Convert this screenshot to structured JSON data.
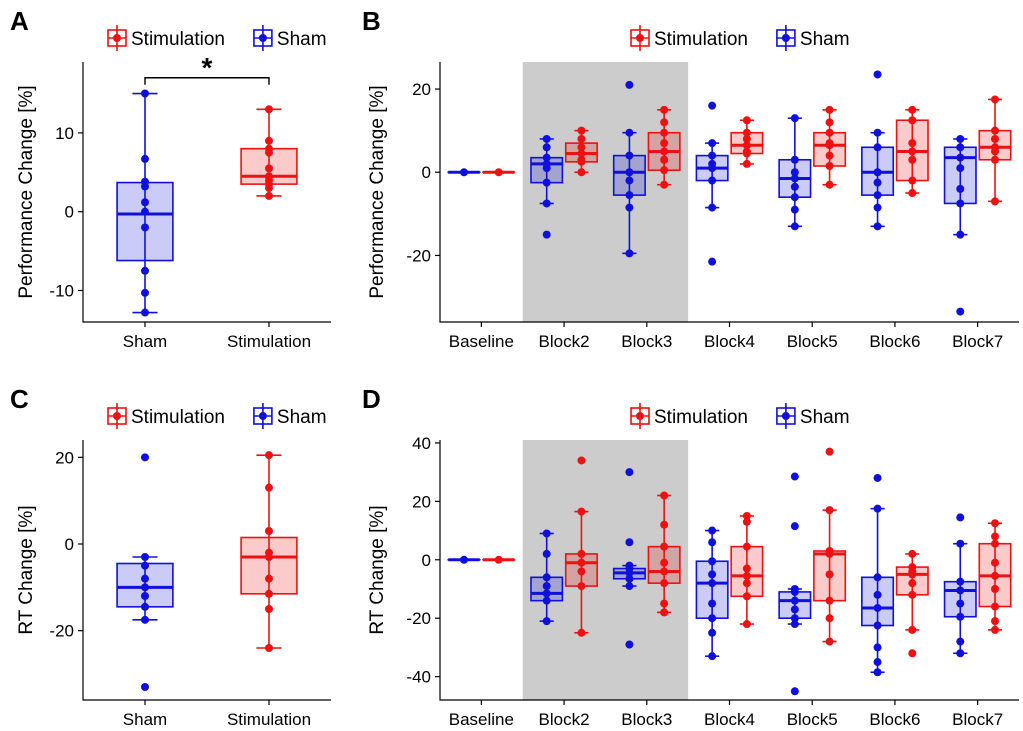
{
  "colors": {
    "stimulation": "#ee1111",
    "sham": "#1010dd",
    "shade": "#cccccc"
  },
  "chart_data": [
    {
      "id": "A",
      "type": "box",
      "panel_label": "A",
      "legend": [
        "Stimulation",
        "Sham"
      ],
      "legend_placement": "top",
      "xlabel": "",
      "ylabel": "Performance Change [%]",
      "ylim": [
        -14,
        19
      ],
      "yticks": [
        -10,
        0,
        10
      ],
      "categories": [
        "Sham",
        "Stimulation"
      ],
      "boxes": [
        {
          "category": "Sham",
          "group": "Sham",
          "min": -12.8,
          "q1": -6.2,
          "median": -0.3,
          "q3": 3.7,
          "max": 15,
          "points": [
            15,
            6.7,
            3.8,
            3.2,
            1.2,
            0,
            -2,
            -7.5,
            -10.3,
            -12.8
          ]
        },
        {
          "category": "Stimulation",
          "group": "Stimulation",
          "min": 2,
          "q1": 3.5,
          "median": 4.5,
          "q3": 8,
          "max": 13,
          "points": [
            13,
            9,
            8,
            7.5,
            5.5,
            4.5,
            4,
            3.5,
            3,
            2
          ]
        }
      ],
      "significance": {
        "label": "*",
        "between": [
          "Sham",
          "Stimulation"
        ],
        "y": 17
      }
    },
    {
      "id": "B",
      "type": "box",
      "panel_label": "B",
      "legend": [
        "Stimulation",
        "Sham"
      ],
      "legend_placement": "top",
      "xlabel": "",
      "ylabel": "Performance Change [%]",
      "ylim": [
        -36,
        26.5
      ],
      "yticks": [
        -20,
        0,
        20
      ],
      "categories": [
        "Baseline",
        "Block2",
        "Block3",
        "Block4",
        "Block5",
        "Block6",
        "Block7"
      ],
      "shaded_categories": [
        "Block2",
        "Block3"
      ],
      "boxes": [
        {
          "category": "Baseline",
          "group": "Sham",
          "min": 0,
          "q1": 0,
          "median": 0,
          "q3": 0,
          "max": 0,
          "points": [
            0
          ]
        },
        {
          "category": "Baseline",
          "group": "Stimulation",
          "min": 0,
          "q1": 0,
          "median": 0,
          "q3": 0,
          "max": 0,
          "points": [
            0
          ]
        },
        {
          "category": "Block2",
          "group": "Sham",
          "min": -7.5,
          "q1": -2.5,
          "median": 2,
          "q3": 3.5,
          "max": 8,
          "points": [
            8,
            6,
            3.5,
            2,
            1,
            -2.5,
            -7.5,
            -15
          ]
        },
        {
          "category": "Block2",
          "group": "Stimulation",
          "min": 0,
          "q1": 2.5,
          "median": 4.5,
          "q3": 7,
          "max": 10,
          "points": [
            10,
            8,
            6,
            4.5,
            3,
            2.5,
            0
          ]
        },
        {
          "category": "Block3",
          "group": "Sham",
          "min": -19.5,
          "q1": -5.5,
          "median": 0,
          "q3": 4,
          "max": 9.5,
          "points": [
            21,
            9.5,
            4,
            0,
            -2,
            -5.5,
            -8.5,
            -19.5
          ]
        },
        {
          "category": "Block3",
          "group": "Stimulation",
          "min": -3,
          "q1": 0.5,
          "median": 5,
          "q3": 9.5,
          "max": 15,
          "points": [
            15,
            12,
            9.5,
            7,
            5,
            3,
            0.5,
            -3
          ]
        },
        {
          "category": "Block4",
          "group": "Sham",
          "min": -8.5,
          "q1": -2,
          "median": 1,
          "q3": 4,
          "max": 7,
          "points": [
            16,
            7,
            4,
            2,
            1,
            -2,
            -8.5,
            -21.5
          ]
        },
        {
          "category": "Block4",
          "group": "Stimulation",
          "min": 2,
          "q1": 4.5,
          "median": 6.5,
          "q3": 9.5,
          "max": 12.5,
          "points": [
            12.5,
            9.5,
            8,
            6.5,
            5,
            4.5,
            2
          ]
        },
        {
          "category": "Block5",
          "group": "Sham",
          "min": -13,
          "q1": -6,
          "median": -1.5,
          "q3": 3,
          "max": 13,
          "points": [
            13,
            3,
            0,
            -1.5,
            -3.5,
            -6,
            -9,
            -13
          ]
        },
        {
          "category": "Block5",
          "group": "Stimulation",
          "min": -3,
          "q1": 1.5,
          "median": 6.5,
          "q3": 9.5,
          "max": 15,
          "points": [
            15,
            12,
            9.5,
            7,
            6.5,
            4,
            1.5,
            -3
          ]
        },
        {
          "category": "Block6",
          "group": "Sham",
          "min": -13,
          "q1": -5.5,
          "median": 0,
          "q3": 6,
          "max": 9.5,
          "points": [
            23.5,
            9.5,
            6,
            0,
            -2.5,
            -5.5,
            -8.5,
            -13
          ]
        },
        {
          "category": "Block6",
          "group": "Stimulation",
          "min": -5,
          "q1": -2,
          "median": 5,
          "q3": 12.5,
          "max": 15,
          "points": [
            15,
            12.5,
            7,
            5,
            3,
            -2,
            -5
          ]
        },
        {
          "category": "Block7",
          "group": "Sham",
          "min": -15,
          "q1": -7.5,
          "median": 3.5,
          "q3": 6,
          "max": 8,
          "points": [
            8,
            6,
            3.5,
            1,
            -4,
            -7.5,
            -15,
            -33.5
          ]
        },
        {
          "category": "Block7",
          "group": "Stimulation",
          "min": -7,
          "q1": 3,
          "median": 6,
          "q3": 10,
          "max": 17.5,
          "points": [
            17.5,
            10,
            8,
            6,
            5,
            3,
            -7
          ]
        }
      ]
    },
    {
      "id": "C",
      "type": "box",
      "panel_label": "C",
      "legend": [
        "Stimulation",
        "Sham"
      ],
      "legend_placement": "top",
      "xlabel": "",
      "ylabel": "RT Change [%]",
      "ylim": [
        -36,
        24
      ],
      "yticks": [
        -20,
        0,
        20
      ],
      "categories": [
        "Sham",
        "Stimulation"
      ],
      "boxes": [
        {
          "category": "Sham",
          "group": "Sham",
          "min": -17.5,
          "q1": -14.5,
          "median": -10,
          "q3": -4.5,
          "max": -3,
          "points": [
            20,
            -3,
            -5,
            -8,
            -10,
            -12,
            -14.5,
            -17.5,
            -33
          ]
        },
        {
          "category": "Stimulation",
          "group": "Stimulation",
          "min": -24,
          "q1": -11.5,
          "median": -3,
          "q3": 1.5,
          "max": 20.5,
          "points": [
            20.5,
            13,
            3,
            -2,
            -3,
            -8,
            -11.5,
            -15,
            -24
          ]
        }
      ]
    },
    {
      "id": "D",
      "type": "box",
      "panel_label": "D",
      "legend": [
        "Stimulation",
        "Sham"
      ],
      "legend_placement": "top",
      "xlabel": "",
      "ylabel": "RT Change [%]",
      "ylim": [
        -48,
        41
      ],
      "yticks": [
        -40,
        -20,
        0,
        20,
        40
      ],
      "categories": [
        "Baseline",
        "Block2",
        "Block3",
        "Block4",
        "Block5",
        "Block6",
        "Block7"
      ],
      "shaded_categories": [
        "Block2",
        "Block3"
      ],
      "boxes": [
        {
          "category": "Baseline",
          "group": "Sham",
          "min": 0,
          "q1": 0,
          "median": 0,
          "q3": 0,
          "max": 0,
          "points": [
            0
          ]
        },
        {
          "category": "Baseline",
          "group": "Stimulation",
          "min": 0,
          "q1": 0,
          "median": 0,
          "q3": 0,
          "max": 0,
          "points": [
            0
          ]
        },
        {
          "category": "Block2",
          "group": "Sham",
          "min": -21,
          "q1": -14,
          "median": -11.5,
          "q3": -6,
          "max": 9,
          "points": [
            9,
            2,
            -6,
            -9,
            -11.5,
            -14,
            -21
          ]
        },
        {
          "category": "Block2",
          "group": "Stimulation",
          "min": -25,
          "q1": -9,
          "median": -1,
          "q3": 2,
          "max": 16.5,
          "points": [
            34,
            16.5,
            2,
            -1,
            -4,
            -9,
            -25
          ]
        },
        {
          "category": "Block3",
          "group": "Sham",
          "min": -9,
          "q1": -6.5,
          "median": -4.5,
          "q3": -3,
          "max": -2,
          "points": [
            30,
            6,
            -2,
            -3,
            -4.5,
            -6.5,
            -9,
            -29
          ]
        },
        {
          "category": "Block3",
          "group": "Stimulation",
          "min": -18,
          "q1": -8,
          "median": -4,
          "q3": 4.5,
          "max": 22,
          "points": [
            22,
            12,
            4.5,
            -1,
            -4,
            -8,
            -15,
            -18
          ]
        },
        {
          "category": "Block4",
          "group": "Sham",
          "min": -33,
          "q1": -20,
          "median": -8,
          "q3": -0.5,
          "max": 10,
          "points": [
            10,
            6,
            -0.5,
            -5,
            -8,
            -15,
            -20,
            -25,
            -33
          ]
        },
        {
          "category": "Block4",
          "group": "Stimulation",
          "min": -22,
          "q1": -12.5,
          "median": -5.5,
          "q3": 4.5,
          "max": 15,
          "points": [
            15,
            13,
            4.5,
            -3,
            -5.5,
            -8,
            -12.5,
            -22
          ]
        },
        {
          "category": "Block5",
          "group": "Sham",
          "min": -22,
          "q1": -20,
          "median": -14,
          "q3": -11,
          "max": -10,
          "points": [
            28.5,
            11.5,
            -10,
            -11,
            -14,
            -17,
            -20,
            -22,
            -45
          ]
        },
        {
          "category": "Block5",
          "group": "Stimulation",
          "min": -28,
          "q1": -14,
          "median": 2,
          "q3": 3,
          "max": 17,
          "points": [
            37,
            17,
            3,
            2,
            -5,
            -14,
            -20,
            -28
          ]
        },
        {
          "category": "Block6",
          "group": "Sham",
          "min": -38.5,
          "q1": -22.5,
          "median": -16.5,
          "q3": -6,
          "max": 17.5,
          "points": [
            28,
            17.5,
            -6,
            -12,
            -16.5,
            -22.5,
            -30,
            -35,
            -38.5
          ]
        },
        {
          "category": "Block6",
          "group": "Stimulation",
          "min": -24,
          "q1": -12,
          "median": -5,
          "q3": -2.5,
          "max": 2,
          "points": [
            2,
            -2.5,
            -4,
            -5,
            -8,
            -12,
            -24,
            -32
          ]
        },
        {
          "category": "Block7",
          "group": "Sham",
          "min": -32,
          "q1": -19.5,
          "median": -10.5,
          "q3": -7.5,
          "max": 5.5,
          "points": [
            14.5,
            5.5,
            -7.5,
            -10.5,
            -15,
            -19.5,
            -28,
            -32
          ]
        },
        {
          "category": "Block7",
          "group": "Stimulation",
          "min": -24,
          "q1": -16,
          "median": -5.5,
          "q3": 5.5,
          "max": 12.5,
          "points": [
            12.5,
            8,
            5.5,
            -1,
            -5.5,
            -10,
            -16,
            -21,
            -24
          ]
        }
      ]
    }
  ]
}
